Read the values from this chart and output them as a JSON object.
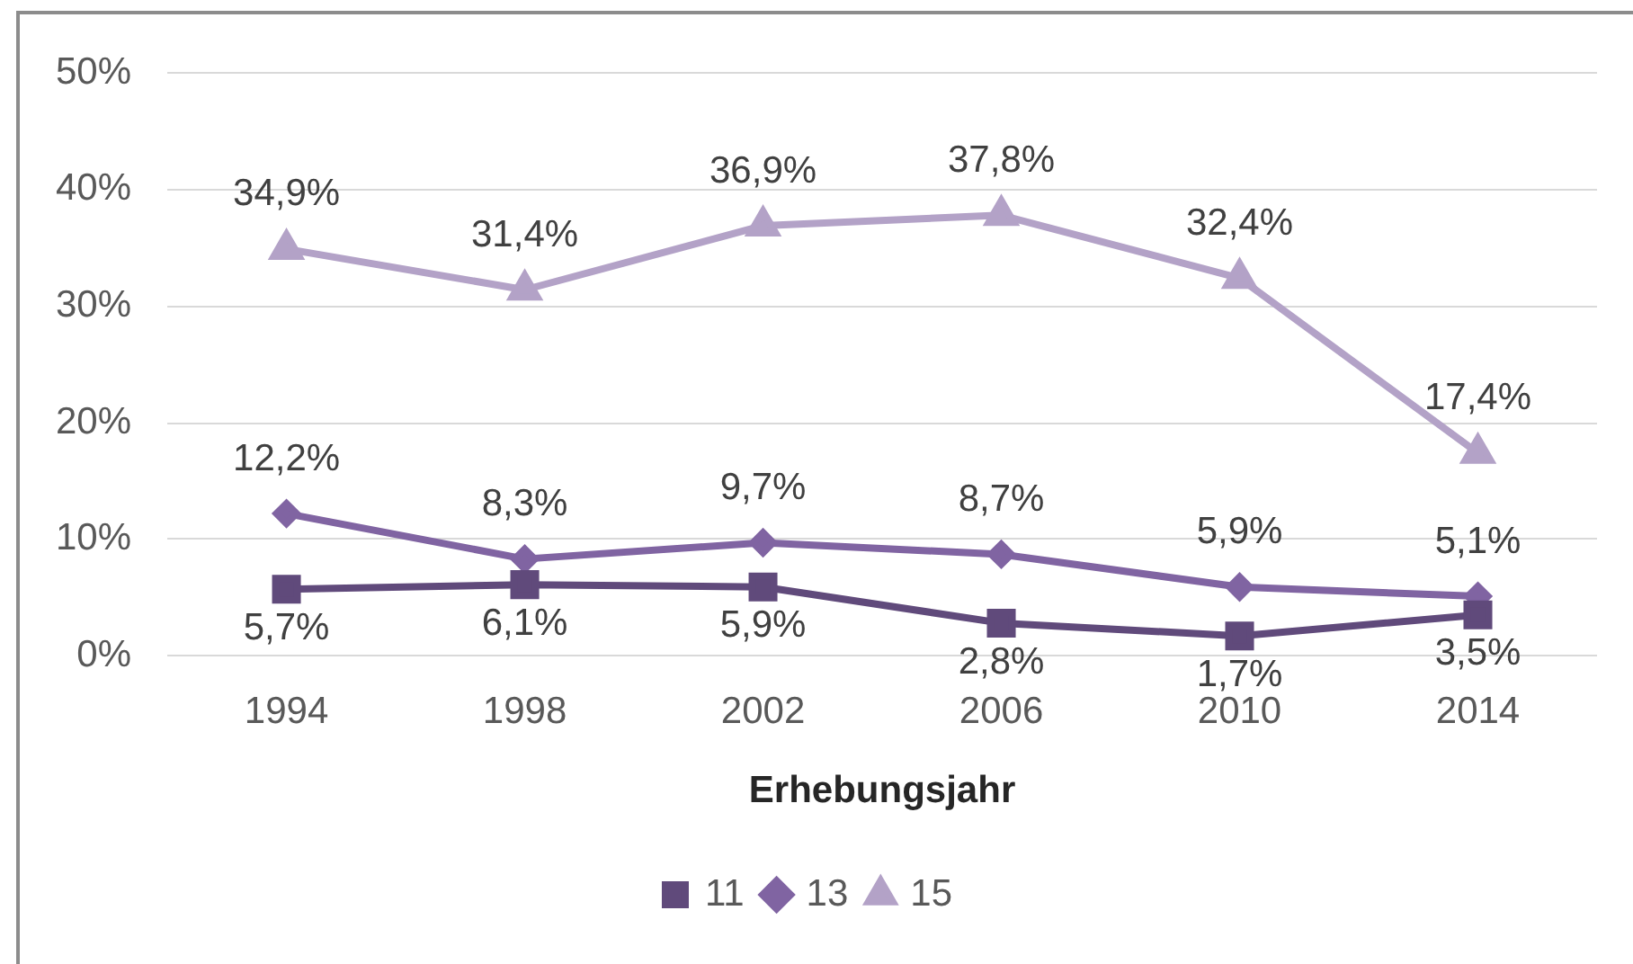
{
  "chart_data": {
    "type": "line",
    "xlabel": "Erhebungsjahr",
    "categories": [
      "1994",
      "1998",
      "2002",
      "2006",
      "2010",
      "2014"
    ],
    "series": [
      {
        "name": "11",
        "color": "#604a7b",
        "marker": "square",
        "values": [
          5.7,
          6.1,
          5.9,
          2.8,
          1.7,
          3.5
        ],
        "value_labels": [
          "5,7%",
          "6,1%",
          "5,9%",
          "2,8%",
          "1,7%",
          "3,5%"
        ]
      },
      {
        "name": "13",
        "color": "#8064a2",
        "marker": "diamond",
        "values": [
          12.2,
          8.3,
          9.7,
          8.7,
          5.9,
          5.1
        ],
        "value_labels": [
          "12,2%",
          "8,3%",
          "9,7%",
          "8,7%",
          "5,9%",
          "5,1%"
        ]
      },
      {
        "name": "15",
        "color": "#b3a2c7",
        "marker": "triangle",
        "values": [
          34.9,
          31.4,
          36.9,
          37.8,
          32.4,
          17.4
        ],
        "value_labels": [
          "34,9%",
          "31,4%",
          "36,9%",
          "37,8%",
          "32,4%",
          "17,4%"
        ]
      }
    ],
    "ylim": [
      0,
      50
    ],
    "yticks": [
      {
        "value": 0,
        "label": "0%"
      },
      {
        "value": 10,
        "label": "10%"
      },
      {
        "value": 20,
        "label": "20%"
      },
      {
        "value": 30,
        "label": "30%"
      },
      {
        "value": 40,
        "label": "40%"
      },
      {
        "value": 50,
        "label": "50%"
      }
    ],
    "grid": "y",
    "legend": "bottom",
    "line_style": "solid"
  }
}
